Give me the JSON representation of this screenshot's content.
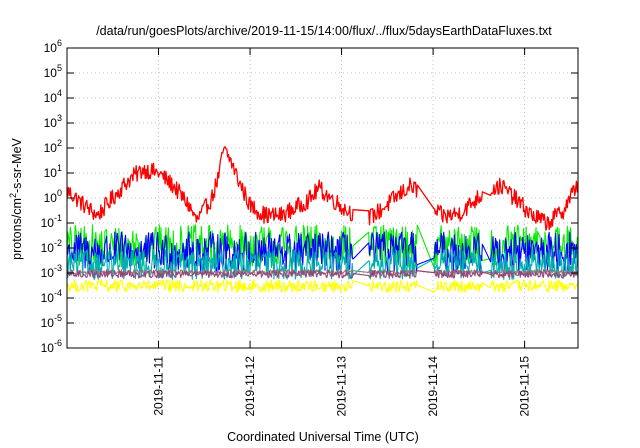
{
  "chart_data": {
    "type": "line",
    "title": "/data/run/goesPlots/archive/2019-11-15/14:00/flux/../flux/5daysEarthDataFluxes.txt",
    "xlabel": "Coordinated Universal Time (UTC)",
    "ylabel": {
      "base": "protons/cm",
      "sup": "2",
      "rest": "-s-sr-MeV"
    },
    "yscale": "log",
    "ylim": [
      1e-06,
      1000000.0
    ],
    "xlim": [
      "2019-11-10T00:00",
      "2019-11-15T14:00"
    ],
    "grid": true,
    "legend": "none",
    "yticks": [
      {
        "base": "10",
        "exp": "-6",
        "value": 1e-06
      },
      {
        "base": "10",
        "exp": "-5",
        "value": 1e-05
      },
      {
        "base": "10",
        "exp": "-4",
        "value": 0.0001
      },
      {
        "base": "10",
        "exp": "-3",
        "value": 0.001
      },
      {
        "base": "10",
        "exp": "-2",
        "value": 0.01
      },
      {
        "base": "10",
        "exp": "-1",
        "value": 0.1
      },
      {
        "base": "10",
        "exp": "0",
        "value": 1
      },
      {
        "base": "10",
        "exp": "1",
        "value": 10
      },
      {
        "base": "10",
        "exp": "2",
        "value": 100
      },
      {
        "base": "10",
        "exp": "3",
        "value": 1000
      },
      {
        "base": "10",
        "exp": "4",
        "value": 10000
      },
      {
        "base": "10",
        "exp": "5",
        "value": 100000
      },
      {
        "base": "10",
        "exp": "6",
        "value": 1000000
      }
    ],
    "xticks": [
      {
        "label": "2019-11-11",
        "value": "2019-11-11T00:00"
      },
      {
        "label": "2019-11-12",
        "value": "2019-11-12T00:00"
      },
      {
        "label": "2019-11-13",
        "value": "2019-11-13T00:00"
      },
      {
        "label": "2019-11-14",
        "value": "2019-11-14T00:00"
      },
      {
        "label": "2019-11-15",
        "value": "2019-11-15T00:00"
      }
    ],
    "data_gaps": [
      {
        "from": "2019-11-13T03:00",
        "to": "2019-11-13T07:00"
      },
      {
        "from": "2019-11-13T20:00",
        "to": "2019-11-14T00:00"
      },
      {
        "from": "2019-11-14T13:00",
        "to": "2019-11-14T15:00"
      }
    ],
    "series": [
      {
        "color": "#ff0000",
        "noise": 0.35,
        "points": [
          [
            "2019-11-10T00:00",
            2.0
          ],
          [
            "2019-11-10T04:00",
            0.6
          ],
          [
            "2019-11-10T08:00",
            0.2
          ],
          [
            "2019-11-10T12:00",
            1.0
          ],
          [
            "2019-11-10T16:00",
            5.0
          ],
          [
            "2019-11-10T20:00",
            14
          ],
          [
            "2019-11-11T00:00",
            10
          ],
          [
            "2019-11-11T04:00",
            3.0
          ],
          [
            "2019-11-11T08:00",
            0.5
          ],
          [
            "2019-11-11T10:00",
            0.12
          ],
          [
            "2019-11-11T14:00",
            1.0
          ],
          [
            "2019-11-11T16:00",
            10
          ],
          [
            "2019-11-11T17:00",
            90
          ],
          [
            "2019-11-11T19:00",
            30
          ],
          [
            "2019-11-11T21:00",
            5.0
          ],
          [
            "2019-11-12T00:00",
            0.5
          ],
          [
            "2019-11-12T04:00",
            0.2
          ],
          [
            "2019-11-12T08:00",
            0.2
          ],
          [
            "2019-11-12T12:00",
            0.4
          ],
          [
            "2019-11-12T16:00",
            1.0
          ],
          [
            "2019-11-12T18:00",
            2.5
          ],
          [
            "2019-11-12T22:00",
            0.8
          ],
          [
            "2019-11-13T01:00",
            0.35
          ],
          [
            "2019-11-13T03:00",
            0.25
          ],
          [
            "2019-11-13T07:00",
            0.15
          ],
          [
            "2019-11-13T10:00",
            0.3
          ],
          [
            "2019-11-13T14:00",
            1.0
          ],
          [
            "2019-11-13T18:00",
            3.0
          ],
          [
            "2019-11-13T20:00",
            2.0
          ],
          [
            "2019-11-14T00:00",
            0.3
          ],
          [
            "2019-11-14T03:00",
            0.18
          ],
          [
            "2019-11-14T07:00",
            0.25
          ],
          [
            "2019-11-14T11:00",
            0.8
          ],
          [
            "2019-11-14T14:00",
            2.0
          ],
          [
            "2019-11-14T18:00",
            3.0
          ],
          [
            "2019-11-14T22:00",
            0.8
          ],
          [
            "2019-11-15T02:00",
            0.2
          ],
          [
            "2019-11-15T06:00",
            0.1
          ],
          [
            "2019-11-15T10:00",
            0.3
          ],
          [
            "2019-11-15T14:00",
            4.0
          ]
        ]
      },
      {
        "color": "#00ee00",
        "noise": 0.85,
        "points": [
          [
            "2019-11-10T00:00",
            0.012
          ],
          [
            "2019-11-12T12:00",
            0.012
          ],
          [
            "2019-11-15T14:00",
            0.012
          ]
        ]
      },
      {
        "color": "#0000ff",
        "noise": 0.8,
        "points": [
          [
            "2019-11-10T00:00",
            0.007
          ],
          [
            "2019-11-12T12:00",
            0.007
          ],
          [
            "2019-11-15T14:00",
            0.007
          ]
        ]
      },
      {
        "color": "#00b0b0",
        "noise": 0.6,
        "points": [
          [
            "2019-11-10T00:00",
            0.0022
          ],
          [
            "2019-11-12T12:00",
            0.0022
          ],
          [
            "2019-11-15T14:00",
            0.0022
          ]
        ]
      },
      {
        "color": "#ffff00",
        "noise": 0.25,
        "points": [
          [
            "2019-11-10T00:00",
            0.0003
          ],
          [
            "2019-11-12T12:00",
            0.0003
          ],
          [
            "2019-11-15T14:00",
            0.0003
          ]
        ]
      },
      {
        "color": "#808080",
        "noise": 0.1,
        "points": [
          [
            "2019-11-10T00:00",
            0.0011
          ],
          [
            "2019-11-12T12:00",
            0.0011
          ],
          [
            "2019-11-15T14:00",
            0.0011
          ]
        ]
      },
      {
        "color": "#994477",
        "noise": 0.15,
        "points": [
          [
            "2019-11-10T00:00",
            0.0009
          ],
          [
            "2019-11-12T12:00",
            0.0009
          ],
          [
            "2019-11-15T14:00",
            0.0009
          ]
        ]
      }
    ]
  }
}
